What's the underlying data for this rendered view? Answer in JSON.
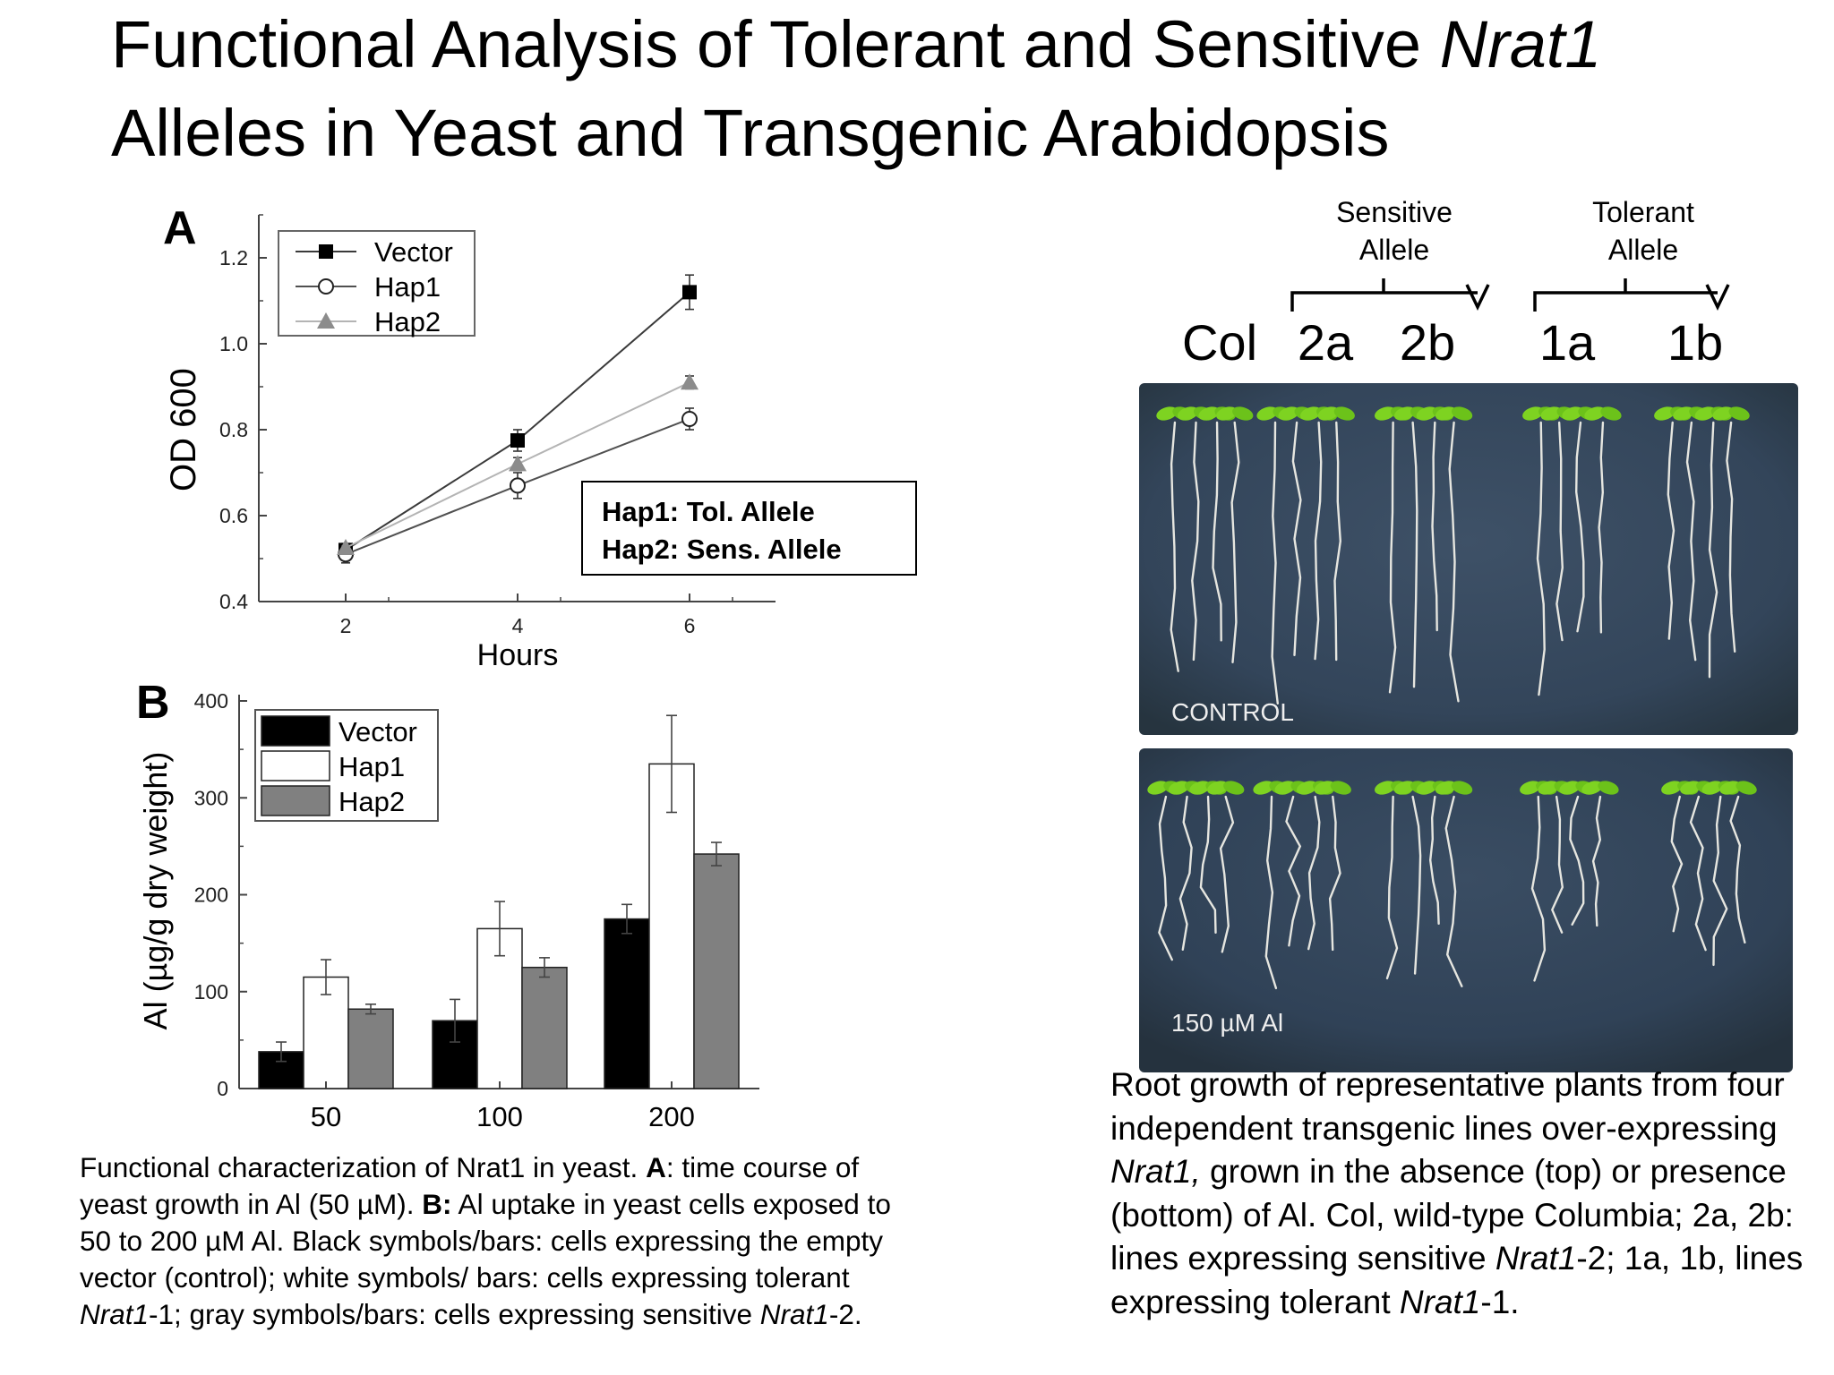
{
  "slide_title": {
    "line1_prefix": "Functional Analysis of Tolerant and Sensitive ",
    "line1_italic": "Nrat1",
    "line2": "Alleles in Yeast and Transgenic Arabidopsis"
  },
  "chart_data": [
    {
      "panel": "A",
      "type": "line",
      "xlabel": "Hours",
      "ylabel": "OD 600",
      "x": [
        2,
        4,
        6
      ],
      "xticks": [
        "2",
        "4",
        "6"
      ],
      "yticks": [
        "0.4",
        "0.6",
        "0.8",
        "1.0",
        "1.2"
      ],
      "ylim": [
        0.4,
        1.25
      ],
      "legend_placement": "top-left",
      "series": [
        {
          "name": "Vector",
          "values": [
            0.52,
            0.775,
            1.12
          ],
          "errors": [
            0.015,
            0.025,
            0.04
          ],
          "marker": "filled-square",
          "color": "#3a3a3a"
        },
        {
          "name": "Hap1",
          "values": [
            0.51,
            0.67,
            0.825
          ],
          "errors": [
            0.02,
            0.03,
            0.025
          ],
          "marker": "open-circle",
          "color": "#505050"
        },
        {
          "name": "Hap2",
          "values": [
            0.525,
            0.72,
            0.91
          ],
          "errors": [
            0.01,
            0.015,
            0.015
          ],
          "marker": "filled-triangle",
          "color": "#b4b4b4"
        }
      ],
      "annotation": [
        "Hap1: Tol. Allele",
        "Hap2: Sens. Allele"
      ]
    },
    {
      "panel": "B",
      "type": "bar",
      "xlabel": "",
      "ylabel": "Al (µg/g dry weight)",
      "categories": [
        "50",
        "100",
        "200"
      ],
      "yticks": [
        "0",
        "100",
        "200",
        "300",
        "400"
      ],
      "ylim": [
        0,
        400
      ],
      "legend_placement": "top-left",
      "series": [
        {
          "name": "Vector",
          "values": [
            38,
            70,
            175
          ],
          "errors": [
            10,
            22,
            15
          ],
          "color": "#000000"
        },
        {
          "name": "Hap1",
          "values": [
            115,
            165,
            335
          ],
          "errors": [
            18,
            28,
            50
          ],
          "color": "#ffffff"
        },
        {
          "name": "Hap2",
          "values": [
            82,
            125,
            242
          ],
          "errors": [
            5,
            10,
            12
          ],
          "color": "#808080"
        }
      ]
    }
  ],
  "photo_panel": {
    "group_labels": [
      {
        "line1": "Sensitive",
        "line2": "Allele"
      },
      {
        "line1": "Tolerant",
        "line2": "Allele"
      }
    ],
    "lanes": [
      "Col",
      "2a",
      "2b",
      "1a",
      "1b"
    ],
    "top_label": "CONTROL",
    "bottom_label": "150 µM Al"
  },
  "captions": {
    "left": {
      "p1": "Functional characterization of Nrat1 in yeast. ",
      "a": "A",
      "p2": ": time course of yeast growth in Al (50 µM). ",
      "b": "B:",
      "p3": " Al uptake in yeast cells exposed to 50 to 200 µM Al. Black symbols/bars: cells expressing the empty vector (control); white symbols/ bars: cells expressing  tolerant ",
      "i1": "Nrat1",
      "p4": "-1; gray symbols/bars: cells expressing sensitive ",
      "i2": "Nrat1",
      "p5": "-2."
    },
    "right": {
      "p1": "Root growth of representative plants from four independent transgenic lines over-expressing ",
      "i1": "Nrat1,",
      "p2": " grown in the absence (top) or presence (bottom) of Al. Col, wild-type Columbia; 2a, 2b: lines expressing sensitive ",
      "i2": "Nrat1",
      "p3": "-2; 1a, 1b, lines expressing tolerant ",
      "i3": "Nrat1",
      "p4": "-1."
    }
  }
}
